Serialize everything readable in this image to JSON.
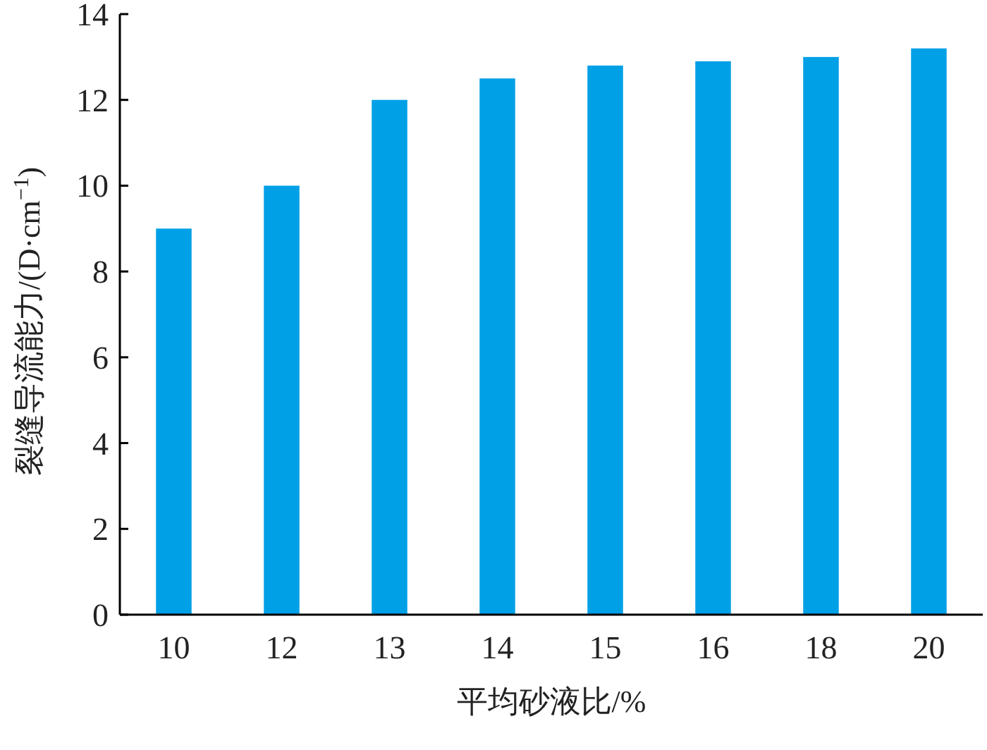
{
  "chart_data": {
    "type": "bar",
    "xlabel": "平均砂液比/%",
    "ylabel": "裂缝导流能力/(D·cm$^{−1}$)",
    "categories": [
      "10",
      "12",
      "13",
      "14",
      "15",
      "16",
      "18",
      "20"
    ],
    "values": [
      9,
      10,
      12,
      12.5,
      12.8,
      12.9,
      13,
      13.2
    ],
    "color": "#00a0e6",
    "ylim": [
      0,
      14
    ],
    "yticks": [
      0,
      2,
      4,
      6,
      8,
      10,
      12,
      14
    ]
  }
}
